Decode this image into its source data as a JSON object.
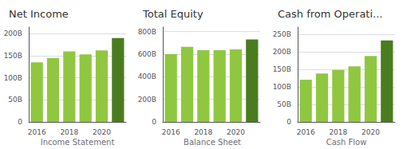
{
  "chart_data": [
    {
      "type": "bar",
      "title": "Net Income",
      "subtitle": "Income Statement",
      "categories": [
        "2016",
        null,
        "2018",
        null,
        "2020",
        null
      ],
      "values": [
        135,
        145,
        160,
        153,
        162,
        190
      ],
      "colors": [
        "#90c740",
        "#90c740",
        "#90c740",
        "#90c740",
        "#90c740",
        "#4a7c1f"
      ],
      "ylim": [
        0,
        215
      ],
      "yticks": [
        0,
        {
          "value": 50,
          "label": "50B"
        },
        {
          "value": 100,
          "label": "100B"
        },
        {
          "value": 150,
          "label": "150B"
        },
        {
          "value": 200,
          "label": "200B"
        }
      ],
      "grid": true
    },
    {
      "type": "bar",
      "title": "Total Equity",
      "subtitle": "Balance Sheet",
      "categories": [
        "2016",
        null,
        "2018",
        null,
        "2020",
        null
      ],
      "values": [
        600,
        665,
        635,
        635,
        642,
        730
      ],
      "colors": [
        "#90c740",
        "#90c740",
        "#90c740",
        "#90c740",
        "#90c740",
        "#4a7c1f"
      ],
      "ylim": [
        0,
        840
      ],
      "yticks": [
        0,
        {
          "value": 200,
          "label": "200B"
        },
        {
          "value": 400,
          "label": "400B"
        },
        {
          "value": 600,
          "label": "600B"
        },
        {
          "value": 800,
          "label": "800B"
        }
      ],
      "grid": true
    },
    {
      "type": "bar",
      "title": "Cash from Operati...",
      "subtitle": "Cash Flow",
      "categories": [
        "2016",
        null,
        "2018",
        null,
        "2020",
        null
      ],
      "values": [
        120,
        138,
        148,
        158,
        188,
        232
      ],
      "colors": [
        "#90c740",
        "#90c740",
        "#90c740",
        "#90c740",
        "#90c740",
        "#4a7c1f"
      ],
      "ylim": [
        0,
        270
      ],
      "yticks": [
        0,
        {
          "value": 50,
          "label": "50B"
        },
        {
          "value": 100,
          "label": "100B"
        },
        {
          "value": 150,
          "label": "150B"
        },
        {
          "value": 200,
          "label": "200B"
        },
        {
          "value": 250,
          "label": "250B"
        }
      ],
      "grid": true
    }
  ]
}
